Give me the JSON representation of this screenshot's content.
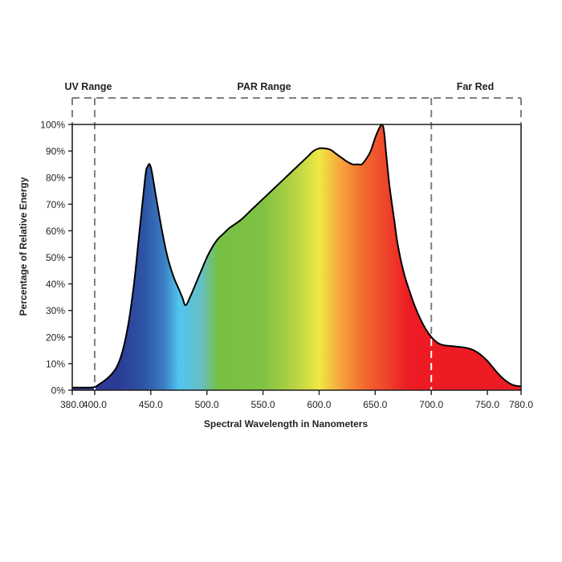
{
  "chart_data": {
    "type": "area",
    "title": "",
    "xlabel": "Spectral Wavelength in Nanometers",
    "ylabel": "Percentage of Relative Energy",
    "xlim": [
      380,
      780
    ],
    "ylim": [
      0,
      100
    ],
    "grid": false,
    "legend": null,
    "x_ticks": [
      "380.0",
      "400.0",
      "450.0",
      "500.0",
      "550.0",
      "600.0",
      "650.0",
      "700.0",
      "750.0",
      "780.0"
    ],
    "x_tick_values": [
      380,
      400,
      450,
      500,
      550,
      600,
      650,
      700,
      750,
      780
    ],
    "y_ticks": [
      "0%",
      "10%",
      "20%",
      "30%",
      "40%",
      "50%",
      "60%",
      "70%",
      "80%",
      "90%",
      "100%"
    ],
    "y_tick_values": [
      0,
      10,
      20,
      30,
      40,
      50,
      60,
      70,
      80,
      90,
      100
    ],
    "ranges": [
      {
        "label": "UV Range",
        "from": 380,
        "to": 400
      },
      {
        "label": "PAR Range",
        "from": 400,
        "to": 700
      },
      {
        "label": "Far Red",
        "from": 700,
        "to": 780
      }
    ],
    "series": [
      {
        "name": "Relative Energy",
        "x": [
          380,
          395,
          400,
          405,
          410,
          415,
          420,
          425,
          430,
          435,
          440,
          445,
          447,
          450,
          455,
          460,
          465,
          470,
          475,
          478,
          481,
          485,
          490,
          495,
          500,
          505,
          510,
          515,
          520,
          530,
          540,
          550,
          560,
          570,
          575,
          580,
          585,
          590,
          595,
          600,
          605,
          610,
          615,
          620,
          625,
          630,
          635,
          638,
          642,
          646,
          650,
          653,
          656,
          658,
          660,
          663,
          667,
          670,
          675,
          680,
          685,
          690,
          695,
          700,
          705,
          710,
          720,
          730,
          735,
          740,
          745,
          750,
          755,
          760,
          765,
          770,
          775,
          780
        ],
        "y": [
          1,
          1,
          1.2,
          2.5,
          4,
          6,
          9,
          15,
          25,
          40,
          60,
          80,
          84,
          84,
          72,
          60,
          50,
          43,
          38,
          35,
          32,
          35,
          40,
          45,
          50,
          54,
          57,
          59,
          61,
          64,
          68,
          72,
          76,
          80,
          82,
          84,
          86,
          88,
          90,
          91,
          91,
          90.5,
          89,
          87.5,
          86,
          85,
          85,
          85,
          87,
          90,
          95,
          98,
          100,
          97,
          88,
          76,
          64,
          55,
          45,
          38,
          32,
          27,
          23,
          20,
          18,
          17,
          16.5,
          16,
          15.5,
          14.5,
          13,
          11,
          8.5,
          6,
          4,
          2.5,
          1.7,
          1.5
        ]
      }
    ],
    "annotations": [
      {
        "type": "peak",
        "x": 450,
        "y": 84
      },
      {
        "type": "valley",
        "x": 481,
        "y": 32
      },
      {
        "type": "local_max",
        "x": 604,
        "y": 91
      },
      {
        "type": "valley",
        "x": 637,
        "y": 85
      },
      {
        "type": "peak",
        "x": 656,
        "y": 100
      }
    ],
    "fill_gradient": [
      {
        "nm": 380,
        "color": "#2e3f96"
      },
      {
        "nm": 420,
        "color": "#2b3a94"
      },
      {
        "nm": 445,
        "color": "#2e56a6"
      },
      {
        "nm": 462,
        "color": "#3b7fc4"
      },
      {
        "nm": 475,
        "color": "#52c5ef"
      },
      {
        "nm": 495,
        "color": "#66bfc4"
      },
      {
        "nm": 510,
        "color": "#76c043"
      },
      {
        "nm": 550,
        "color": "#80c143"
      },
      {
        "nm": 580,
        "color": "#b9d444"
      },
      {
        "nm": 600,
        "color": "#f0e845"
      },
      {
        "nm": 620,
        "color": "#f7a23b"
      },
      {
        "nm": 640,
        "color": "#f26a2e"
      },
      {
        "nm": 665,
        "color": "#ee3a29"
      },
      {
        "nm": 680,
        "color": "#ed1c24"
      },
      {
        "nm": 780,
        "color": "#ed1c24"
      }
    ]
  },
  "colors": {
    "axis": "#231f20",
    "dashed_range_line": "#808080",
    "curve_outline": "#000000"
  }
}
